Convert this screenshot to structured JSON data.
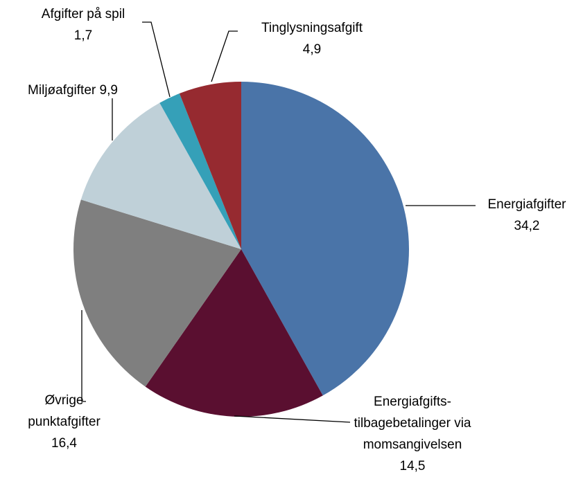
{
  "chart_data": {
    "type": "pie",
    "categories": [
      "Energiafgifter",
      "Energiafgifts-tilbagebetalinger via momsangivelsen",
      "Øvrige punktafgifter",
      "Miljøafgifter",
      "Afgifter på spil",
      "Tinglysningsafgift"
    ],
    "values": [
      34.2,
      14.5,
      16.4,
      9.9,
      1.7,
      4.9
    ],
    "value_labels": [
      "34,2",
      "14,5",
      "16,4",
      "9,9",
      "1,7",
      "4,9"
    ],
    "colors": [
      "#4a74a8",
      "#5a0f30",
      "#7f7f7f",
      "#bfd0d8",
      "#35a0b8",
      "#962a30"
    ]
  }
}
